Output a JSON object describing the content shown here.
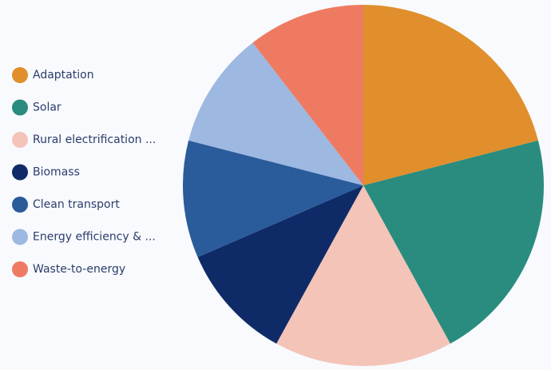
{
  "chart_data": {
    "type": "pie",
    "categories": [
      "Adaptation",
      "Solar",
      "Rural electrification ...",
      "Biomass",
      "Clean transport",
      "Energy efficiency & ...",
      "Waste-to-energy"
    ],
    "values": [
      21,
      21,
      16,
      10.5,
      10.5,
      10.5,
      10.5
    ],
    "colors": [
      "#e08f2c",
      "#2a8c7f",
      "#f4c4b8",
      "#0f2b67",
      "#2a5b9b",
      "#9db8e1",
      "#ee7b61"
    ],
    "legend": "left"
  }
}
